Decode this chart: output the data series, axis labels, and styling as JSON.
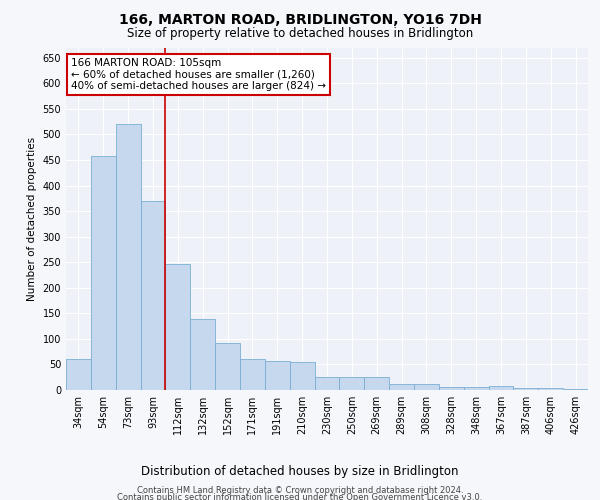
{
  "title": "166, MARTON ROAD, BRIDLINGTON, YO16 7DH",
  "subtitle": "Size of property relative to detached houses in Bridlington",
  "xlabel": "Distribution of detached houses by size in Bridlington",
  "ylabel": "Number of detached properties",
  "bar_color": "#c5d8ed",
  "bar_edgecolor": "#7aafd4",
  "background_color": "#eef2f8",
  "grid_color": "#ffffff",
  "categories": [
    "34sqm",
    "54sqm",
    "73sqm",
    "93sqm",
    "112sqm",
    "132sqm",
    "152sqm",
    "171sqm",
    "191sqm",
    "210sqm",
    "230sqm",
    "250sqm",
    "269sqm",
    "289sqm",
    "308sqm",
    "328sqm",
    "348sqm",
    "367sqm",
    "387sqm",
    "406sqm",
    "426sqm"
  ],
  "values": [
    60,
    457,
    520,
    370,
    247,
    138,
    92,
    60,
    57,
    55,
    25,
    25,
    25,
    12,
    12,
    6,
    6,
    8,
    3,
    3,
    2
  ],
  "vline_index": 3.5,
  "vline_color": "#cc0000",
  "annotation_text": "166 MARTON ROAD: 105sqm\n← 60% of detached houses are smaller (1,260)\n40% of semi-detached houses are larger (824) →",
  "annotation_box_edgecolor": "#cc0000",
  "annotation_fontsize": 7.5,
  "ylim": [
    0,
    670
  ],
  "yticks": [
    0,
    50,
    100,
    150,
    200,
    250,
    300,
    350,
    400,
    450,
    500,
    550,
    600,
    650
  ],
  "title_fontsize": 10,
  "subtitle_fontsize": 8.5,
  "xlabel_fontsize": 8.5,
  "ylabel_fontsize": 7.5,
  "tick_fontsize": 7,
  "footer_line1": "Contains HM Land Registry data © Crown copyright and database right 2024.",
  "footer_line2": "Contains public sector information licensed under the Open Government Licence v3.0.",
  "footer_fontsize": 6
}
